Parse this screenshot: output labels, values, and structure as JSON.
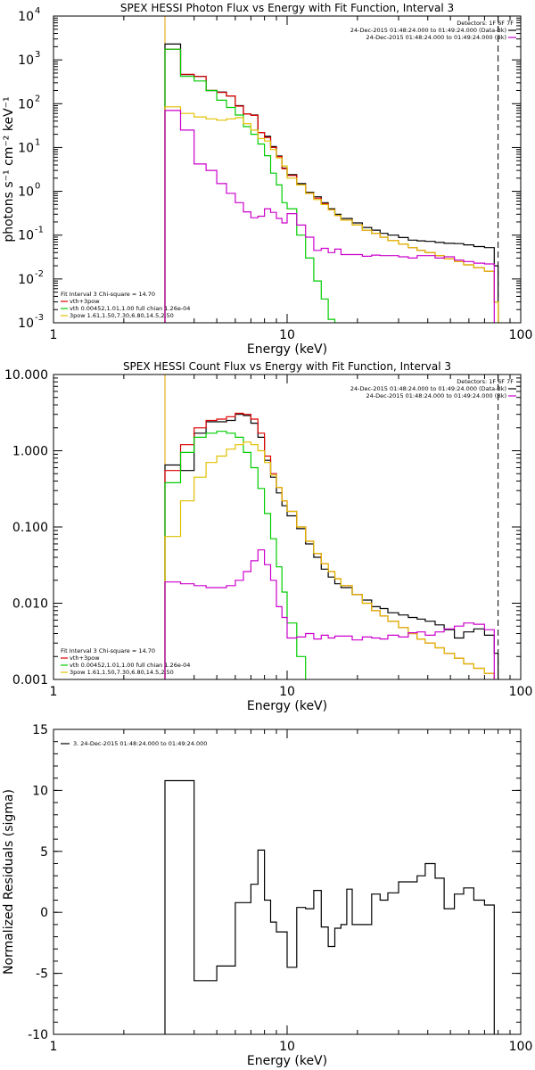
{
  "chart_data": [
    {
      "type": "line",
      "title": "SPEX HESSI Photon Flux vs Energy with Fit Function, Interval 3",
      "xlabel": "Energy (keV)",
      "ylabel": "photons s⁻¹ cm⁻² keV⁻¹",
      "xscale": "log",
      "yscale": "log",
      "xlim": [
        1,
        100
      ],
      "ylim": [
        0.001,
        10000
      ],
      "x_ticks": [
        {
          "v": 1,
          "label": "1"
        },
        {
          "v": 10,
          "label": "10"
        },
        {
          "v": 100,
          "label": "100"
        }
      ],
      "y_ticks": [
        {
          "v": 0.001,
          "base": "10",
          "exp": "-3"
        },
        {
          "v": 0.01,
          "base": "10",
          "exp": "-2"
        },
        {
          "v": 0.1,
          "base": "10",
          "exp": "-1"
        },
        {
          "v": 1,
          "base": "10",
          "exp": "0"
        },
        {
          "v": 10,
          "base": "10",
          "exp": "1"
        },
        {
          "v": 100,
          "base": "10",
          "exp": "2"
        },
        {
          "v": 1000,
          "base": "10",
          "exp": "3"
        },
        {
          "v": 10000,
          "base": "10",
          "exp": "4"
        }
      ],
      "vlines": [
        {
          "x": 3.0,
          "style": "dotted",
          "color": "#000000"
        },
        {
          "x": 3.0,
          "style": "solid",
          "color": "#e0a000"
        },
        {
          "x": 80,
          "style": "dashed",
          "color": "#000000"
        }
      ],
      "legend_topright": [
        {
          "text": "Detectors: 1F 6F 7F",
          "color": null
        },
        {
          "text": "24-Dec-2015 01:48:24.000 to 01:49:24.000 (Data-Bk)",
          "color": "#000000"
        },
        {
          "text": "24-Dec-2015 01:48:24.000 to 01:49:24.000 (Bk)",
          "color": "#cc00cc"
        }
      ],
      "legend_bottomleft": [
        {
          "text": "Fit Interval 3   Chi-square = 14.70",
          "color": null
        },
        {
          "text": "vth+3pow",
          "color": "#dd0000"
        },
        {
          "text": "vth 0.00452,1.01,1.00  full chian 1.26e-04",
          "color": "#00cc00"
        },
        {
          "text": "3pow 1.61,1.50,7.30,6.80,14.5,2.50",
          "color": "#e0c000"
        }
      ],
      "x_edges": [
        3.0,
        3.5,
        4.0,
        4.5,
        5.0,
        5.5,
        6.0,
        6.5,
        7.0,
        7.5,
        8.0,
        8.5,
        9.0,
        9.5,
        10.0,
        11.0,
        12.0,
        13.0,
        14.0,
        15.0,
        16.0,
        17.0,
        19.0,
        21.0,
        23.0,
        25.0,
        27.0,
        30.0,
        33.0,
        36.0,
        39.0,
        43.0,
        47.0,
        52.0,
        57.0,
        63.0,
        70.0,
        77.0,
        80.0
      ],
      "series": [
        {
          "color": "#000000",
          "values": [
            2300,
            460,
            420,
            200,
            185,
            150,
            90,
            58,
            55,
            22,
            18,
            10.5,
            6.4,
            3.4,
            2.4,
            1.5,
            0.95,
            0.75,
            0.55,
            0.4,
            0.3,
            0.24,
            0.19,
            0.15,
            0.13,
            0.11,
            0.1,
            0.088,
            0.077,
            0.074,
            0.072,
            0.068,
            0.065,
            0.064,
            0.06,
            0.055,
            0.052,
            0.02
          ]
        },
        {
          "color": "#dd0000",
          "values": [
            1750,
            470,
            420,
            200,
            180,
            150,
            88,
            58,
            54,
            22,
            17,
            10,
            6.2,
            3.3,
            2.3,
            1.4,
            0.9,
            0.7,
            0.52,
            0.38,
            0.28,
            0.22,
            0.17,
            0.13,
            0.11,
            0.09,
            0.075,
            0.063,
            0.052,
            0.045,
            0.04,
            0.034,
            0.029,
            0.025,
            0.021,
            0.018,
            0.015,
            0.003
          ]
        },
        {
          "color": "#00cc00",
          "values": [
            1750,
            420,
            330,
            200,
            120,
            82,
            55,
            30,
            20,
            12,
            6.5,
            2.6,
            1.4,
            0.55,
            0.4,
            0.1,
            0.03,
            0.009,
            0.0035,
            0.0012,
            0.0008
          ]
        },
        {
          "color": "#e0c000",
          "values": [
            85,
            60,
            50,
            45,
            42,
            45,
            48,
            35,
            25,
            16,
            14,
            9,
            5.8,
            3.8,
            2.0,
            1.4,
            0.9,
            0.65,
            0.5,
            0.38,
            0.28,
            0.22,
            0.17,
            0.13,
            0.11,
            0.09,
            0.075,
            0.063,
            0.052,
            0.045,
            0.04,
            0.034,
            0.029,
            0.025,
            0.021,
            0.018,
            0.015,
            0.003
          ]
        },
        {
          "color": "#cc00cc",
          "values": [
            70,
            25,
            4.2,
            3.0,
            1.5,
            0.9,
            0.55,
            0.34,
            0.25,
            0.27,
            0.4,
            0.33,
            0.24,
            0.19,
            0.31,
            0.17,
            0.09,
            0.045,
            0.05,
            0.04,
            0.048,
            0.036,
            0.036,
            0.033,
            0.035,
            0.034,
            0.034,
            0.032,
            0.03,
            0.034,
            0.034,
            0.03,
            0.032,
            0.027,
            0.025,
            0.023,
            0.022,
            0.0008
          ]
        }
      ]
    },
    {
      "type": "line",
      "title": "SPEX HESSI Count Flux vs Energy with Fit Function, Interval 3",
      "xlabel": "Energy (keV)",
      "ylabel": "",
      "xscale": "log",
      "yscale": "log",
      "xlim": [
        1,
        100
      ],
      "ylim": [
        0.001,
        10
      ],
      "x_ticks": [
        {
          "v": 1,
          "label": "1"
        },
        {
          "v": 10,
          "label": "10"
        },
        {
          "v": 100,
          "label": "100"
        }
      ],
      "y_ticks": [
        {
          "v": 0.001,
          "label": "0.001"
        },
        {
          "v": 0.01,
          "label": "0.010"
        },
        {
          "v": 0.1,
          "label": "0.100"
        },
        {
          "v": 1,
          "label": "1.000"
        },
        {
          "v": 10,
          "label": "10.000"
        }
      ],
      "vlines": [
        {
          "x": 3.0,
          "style": "dotted",
          "color": "#000000"
        },
        {
          "x": 3.0,
          "style": "solid",
          "color": "#e0a000"
        },
        {
          "x": 80,
          "style": "dashed",
          "color": "#000000"
        }
      ],
      "legend_topright": [
        {
          "text": "Detectors: 1F 6F 7F",
          "color": null
        },
        {
          "text": "24-Dec-2015 01:48:24.000 to 01:49:24.000 (Data-Bk)",
          "color": "#000000"
        },
        {
          "text": "24-Dec-2015 01:48:24.000 to 01:49:24.000 (Bk)",
          "color": "#cc00cc"
        }
      ],
      "legend_bottomleft": [
        {
          "text": "Fit Interval 3   Chi-square = 14.70",
          "color": null
        },
        {
          "text": "vth+3pow",
          "color": "#dd0000"
        },
        {
          "text": "vth 0.00452,1.01,1.00  full chian 1.26e-04",
          "color": "#00cc00"
        },
        {
          "text": "3pow 1.61,1.50,7.30,6.80,14.5,2.50",
          "color": "#e0c000"
        }
      ],
      "x_edges": [
        3.0,
        3.5,
        4.0,
        4.5,
        5.0,
        5.5,
        6.0,
        6.5,
        7.0,
        7.5,
        8.0,
        8.5,
        9.0,
        9.5,
        10.0,
        11.0,
        12.0,
        13.0,
        14.0,
        15.0,
        16.0,
        17.0,
        19.0,
        21.0,
        23.0,
        25.0,
        27.0,
        30.0,
        33.0,
        36.0,
        39.0,
        43.0,
        47.0,
        52.0,
        57.0,
        63.0,
        70.0,
        77.0,
        80.0
      ],
      "series": [
        {
          "color": "#000000",
          "values": [
            0.65,
            0.55,
            1.7,
            2.4,
            2.4,
            2.5,
            3.0,
            2.9,
            2.3,
            1.5,
            0.75,
            0.45,
            0.28,
            0.19,
            0.14,
            0.095,
            0.06,
            0.04,
            0.028,
            0.022,
            0.018,
            0.016,
            0.013,
            0.011,
            0.009,
            0.0085,
            0.0075,
            0.007,
            0.0065,
            0.0062,
            0.0058,
            0.0052,
            0.0045,
            0.0035,
            0.0042,
            0.0046,
            0.0038,
            0.0022
          ]
        },
        {
          "color": "#dd0000",
          "values": [
            0.55,
            1.2,
            2.0,
            2.5,
            2.6,
            2.8,
            3.1,
            3.0,
            2.6,
            1.7,
            0.85,
            0.5,
            0.33,
            0.22,
            0.16,
            0.1,
            0.065,
            0.045,
            0.033,
            0.026,
            0.021,
            0.017,
            0.013,
            0.01,
            0.008,
            0.0068,
            0.0058,
            0.0048,
            0.004,
            0.0034,
            0.003,
            0.0026,
            0.0022,
            0.0019,
            0.0016,
            0.0014,
            0.0012,
            0.0008
          ]
        },
        {
          "color": "#00cc00",
          "values": [
            0.38,
            0.95,
            1.5,
            1.7,
            1.8,
            1.7,
            1.5,
            0.95,
            0.6,
            0.32,
            0.15,
            0.07,
            0.03,
            0.014,
            0.0055,
            0.002,
            0.0008
          ]
        },
        {
          "color": "#e0c000",
          "values": [
            0.075,
            0.22,
            0.45,
            0.7,
            0.85,
            1.05,
            1.2,
            1.3,
            1.2,
            1.0,
            0.7,
            0.48,
            0.33,
            0.22,
            0.16,
            0.1,
            0.065,
            0.045,
            0.033,
            0.026,
            0.021,
            0.017,
            0.013,
            0.01,
            0.008,
            0.0068,
            0.0058,
            0.0048,
            0.004,
            0.0034,
            0.003,
            0.0026,
            0.0022,
            0.0019,
            0.0016,
            0.0014,
            0.0012,
            0.0008
          ]
        },
        {
          "color": "#cc00cc",
          "values": [
            0.019,
            0.018,
            0.017,
            0.016,
            0.016,
            0.017,
            0.02,
            0.026,
            0.036,
            0.05,
            0.032,
            0.02,
            0.009,
            0.0065,
            0.0035,
            0.0036,
            0.004,
            0.0034,
            0.0038,
            0.0035,
            0.0037,
            0.0037,
            0.0033,
            0.0036,
            0.0035,
            0.0034,
            0.0038,
            0.0036,
            0.0041,
            0.0042,
            0.0038,
            0.0042,
            0.0046,
            0.005,
            0.0055,
            0.0053,
            0.0045,
            0.0007
          ]
        }
      ]
    },
    {
      "type": "line",
      "title": "",
      "xlabel": "Energy (keV)",
      "ylabel": "Normalized Residuals (sigma)",
      "xscale": "log",
      "yscale": "linear",
      "xlim": [
        1,
        100
      ],
      "ylim": [
        -10,
        15
      ],
      "x_ticks": [
        {
          "v": 1,
          "label": "1"
        },
        {
          "v": 10,
          "label": "10"
        },
        {
          "v": 100,
          "label": "100"
        }
      ],
      "y_ticks": [
        {
          "v": -10,
          "label": "-10"
        },
        {
          "v": -5,
          "label": "-5"
        },
        {
          "v": 0,
          "label": "0"
        },
        {
          "v": 5,
          "label": "5"
        },
        {
          "v": 10,
          "label": "10"
        },
        {
          "v": 15,
          "label": "15"
        }
      ],
      "vlines": [],
      "legend_topleft": [
        {
          "text": "3. 24-Dec-2015 01:48:24.000 to 01:49:24.000",
          "color": "#000000"
        }
      ],
      "x_edges": [
        3.0,
        4.0,
        5.0,
        6.0,
        7.0,
        7.5,
        8.0,
        8.5,
        9.0,
        10.0,
        11.0,
        12.0,
        13.0,
        14.0,
        15.0,
        16.0,
        17.0,
        18.0,
        19.0,
        21.0,
        23.0,
        25.0,
        27.0,
        30.0,
        33.0,
        36.0,
        39.0,
        43.0,
        47.0,
        52.0,
        57.0,
        63.0,
        70.0,
        77.0,
        80.0
      ],
      "series": [
        {
          "color": "#000000",
          "values": [
            10.8,
            -5.6,
            -4.4,
            0.8,
            2.3,
            5.1,
            1.0,
            -0.8,
            -1.6,
            -4.5,
            0.4,
            0.3,
            1.8,
            -1.2,
            -2.8,
            -1.3,
            -1.0,
            1.9,
            -1.0,
            -1.0,
            1.5,
            1.0,
            1.6,
            2.5,
            2.5,
            3.0,
            4.0,
            2.8,
            0.3,
            1.5,
            2.0,
            1.0,
            0.6,
            -10.5
          ]
        }
      ]
    }
  ]
}
